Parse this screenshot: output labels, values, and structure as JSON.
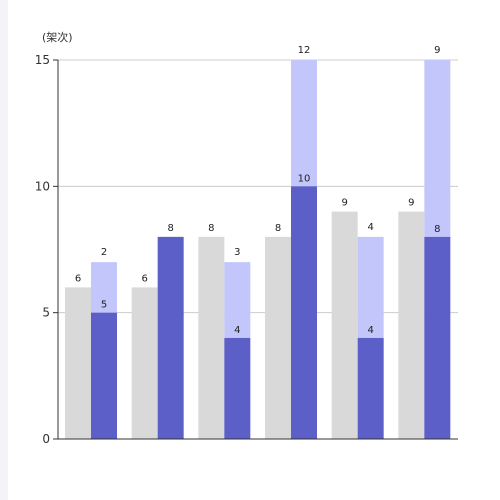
{
  "chart_data": {
    "type": "bar",
    "stacked_series": "planned-and-extra",
    "y_unit_label": "(架次)",
    "ylim": [
      0,
      15
    ],
    "yticks": [
      0,
      5,
      10,
      15
    ],
    "grid": true,
    "legend": "none",
    "categories": [
      "",
      "",
      "",
      "",
      "",
      ""
    ],
    "series": [
      {
        "values": [
          6,
          6,
          8,
          8,
          9,
          9
        ],
        "color": "#d9d9d9"
      },
      {
        "values": [
          5,
          8,
          4,
          10,
          4,
          8
        ],
        "color": "#5b5fc7"
      },
      {
        "values": [
          2,
          null,
          3,
          12,
          4,
          9
        ],
        "color": "#c3c6fb"
      }
    ]
  }
}
